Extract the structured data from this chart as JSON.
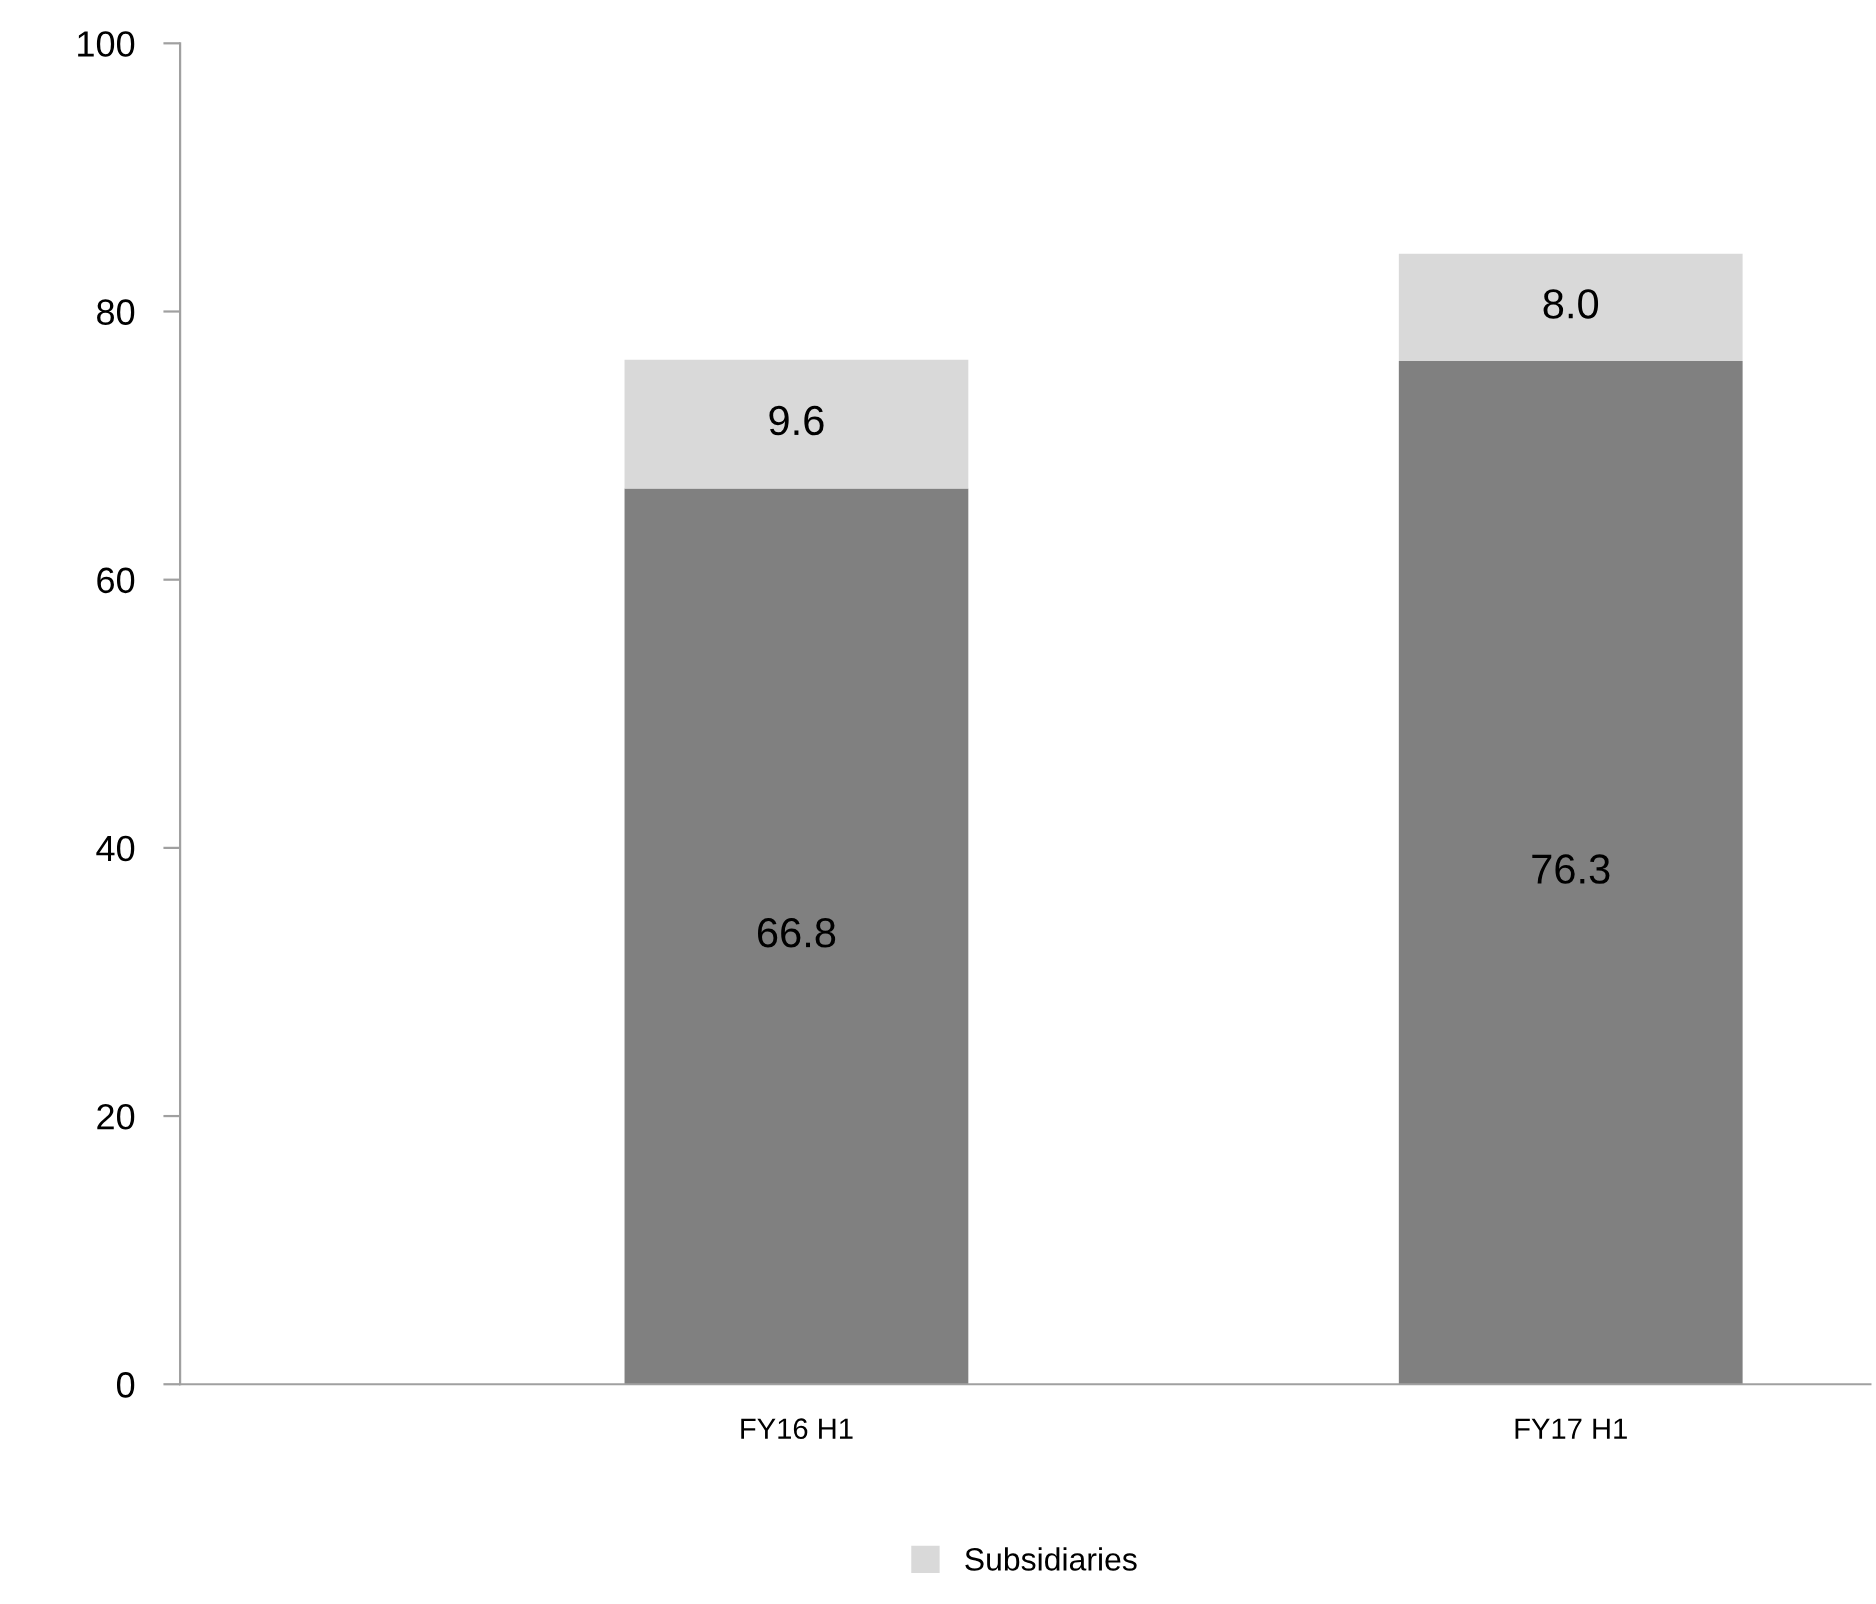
{
  "chart_data": {
    "type": "bar",
    "stacked": true,
    "categories": [
      "FY16 H1",
      "FY17 H1"
    ],
    "series": [
      {
        "color": "#808080",
        "values": [
          66.8,
          76.3
        ],
        "value_labels": [
          "66.8",
          "76.3"
        ]
      },
      {
        "name": "Subsidiaries",
        "color": "#d9d9d9",
        "values": [
          9.6,
          8.0
        ],
        "value_labels": [
          "9.6",
          "8.0"
        ]
      }
    ],
    "ylim": [
      0,
      100
    ],
    "yticks": [
      0,
      20,
      40,
      60,
      80,
      100
    ],
    "grid": false,
    "legend": "bottom"
  }
}
